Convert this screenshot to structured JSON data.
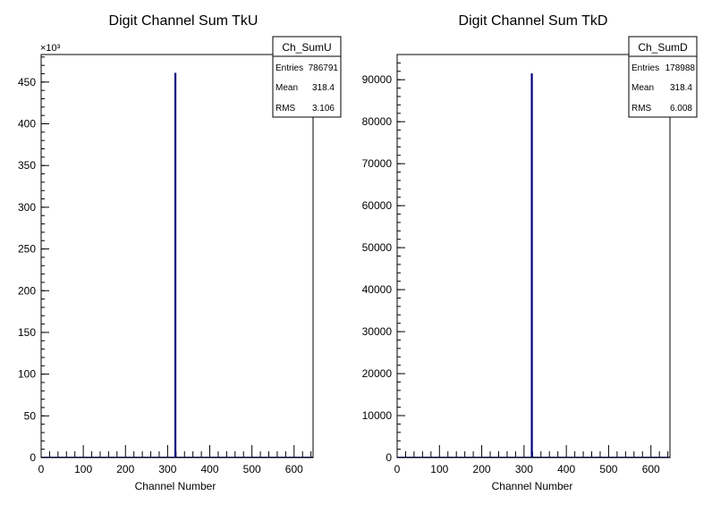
{
  "chart_data": [
    {
      "type": "histogram",
      "title": "Digit Channel Sum TkU",
      "xlabel": "Channel Number",
      "ylabel": "",
      "xlim": [
        0,
        645
      ],
      "ylim": [
        0,
        483
      ],
      "exponent_label": "×10³",
      "xticks": [
        0,
        100,
        200,
        300,
        400,
        500,
        600
      ],
      "yticks": [
        0,
        50,
        100,
        150,
        200,
        250,
        300,
        350,
        400,
        450
      ],
      "bins": [
        {
          "x": 318.4,
          "y": 461
        }
      ],
      "line_color": "#000080",
      "stats": {
        "name": "Ch_SumU",
        "rows": [
          {
            "label": "Entries",
            "value": "786791"
          },
          {
            "label": "Mean",
            "value": "318.4"
          },
          {
            "label": "RMS",
            "value": "3.106"
          }
        ]
      }
    },
    {
      "type": "histogram",
      "title": "Digit Channel Sum TkD",
      "xlabel": "Channel Number",
      "ylabel": "",
      "xlim": [
        0,
        645
      ],
      "ylim": [
        0,
        96000
      ],
      "xticks": [
        0,
        100,
        200,
        300,
        400,
        500,
        600
      ],
      "yticks": [
        0,
        10000,
        20000,
        30000,
        40000,
        50000,
        60000,
        70000,
        80000,
        90000
      ],
      "bins": [
        {
          "x": 318.4,
          "y": 91500
        }
      ],
      "line_color": "#000080",
      "stats": {
        "name": "Ch_SumD",
        "rows": [
          {
            "label": "Entries",
            "value": "178988"
          },
          {
            "label": "Mean",
            "value": "318.4"
          },
          {
            "label": "RMS",
            "value": "6.008"
          }
        ]
      }
    }
  ]
}
